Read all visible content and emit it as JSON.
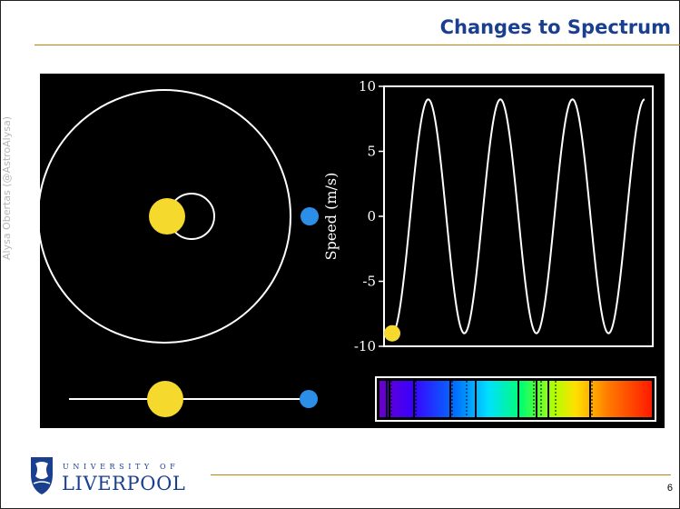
{
  "slide": {
    "title": "Changes to Spectrum",
    "credit": "Alysa Obertas (@AstroAlysa)",
    "page_number": "6"
  },
  "logo": {
    "line1": "UNIVERSITY OF",
    "line2": "LIVERPOOL"
  },
  "chart_data": {
    "type": "line",
    "ylabel": "Speed (m/s)",
    "ylim": [
      -10,
      10
    ],
    "yticks": [
      "10",
      "5",
      "0",
      "-5",
      "-10"
    ],
    "series": [
      {
        "x": [
          0,
          0.5,
          1,
          1.5,
          2,
          2.5,
          3,
          3.5
        ],
        "y": [
          -9,
          9,
          -9,
          9,
          -9,
          9,
          -9,
          9
        ]
      }
    ],
    "marker": {
      "x": 0,
      "y": -9,
      "color": "#f5d92c"
    }
  },
  "colors": {
    "star": "#f5d92c",
    "planet": "#2b8fe8",
    "title": "#1b3f8f",
    "accent_rule": "#b8860b"
  }
}
